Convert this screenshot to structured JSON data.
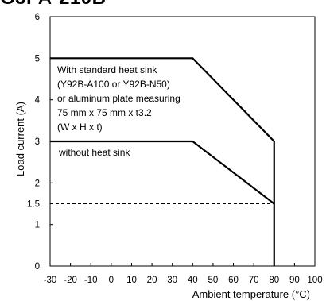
{
  "header": {
    "title": "G3PA-210B"
  },
  "chart_data": {
    "type": "line",
    "xlabel": "Ambient temperature (°C)",
    "ylabel": "Load current (A)",
    "xlim": [
      -30,
      100
    ],
    "ylim": [
      0,
      6
    ],
    "x_ticks": [
      "-30",
      "-20",
      "-10",
      "0",
      "10",
      "20",
      "30",
      "40",
      "50",
      "60",
      "70",
      "80",
      "90",
      "100"
    ],
    "y_ticks": [
      "0",
      "1",
      "1.5",
      "2",
      "3",
      "4",
      "5",
      "6"
    ],
    "grid": false,
    "series": [
      {
        "x": [
          -30,
          40,
          80,
          80
        ],
        "y": [
          5,
          5,
          3,
          0
        ]
      },
      {
        "x": [
          -30,
          40,
          80
        ],
        "y": [
          3,
          3,
          1.5
        ]
      }
    ],
    "reference_line": {
      "y": 1.5,
      "x": [
        -30,
        80
      ],
      "style": "dashed"
    },
    "annotations": [
      "With standard heat sink",
      "(Y92B-A100 or Y92B-N50)",
      "or aluminum plate measuring",
      "75 mm x 75 mm x t3.2",
      "(W x H x t)",
      "without heat sink"
    ]
  }
}
